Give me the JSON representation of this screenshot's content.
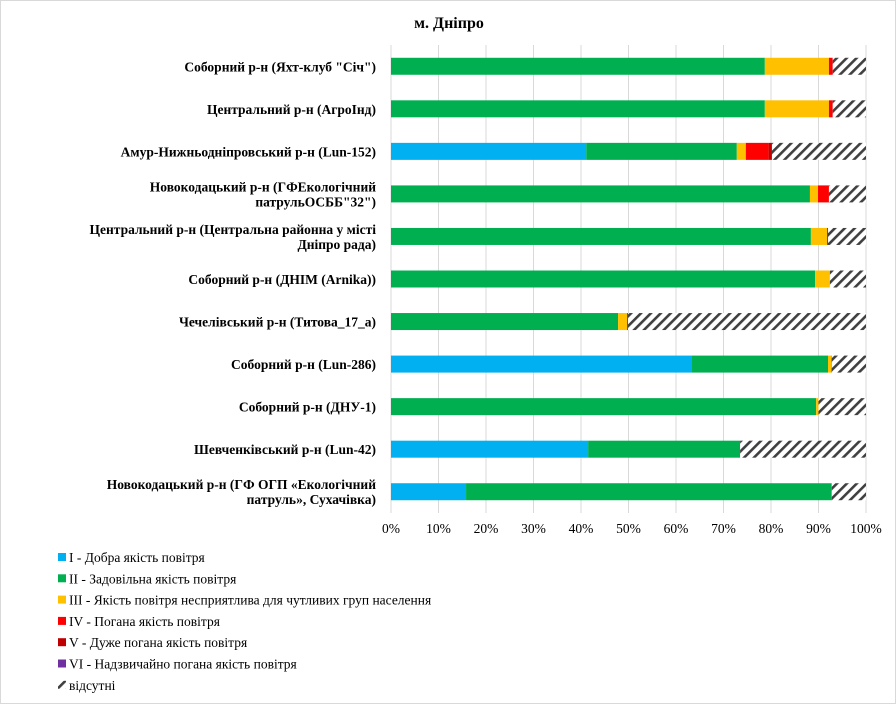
{
  "chart_data": {
    "type": "bar",
    "orientation": "horizontal",
    "stacked": "percent",
    "title": "м. Дніпро",
    "xlabel": "",
    "ylabel": "",
    "xlim": [
      0,
      100
    ],
    "x_ticks": [
      "0%",
      "10%",
      "20%",
      "30%",
      "40%",
      "50%",
      "60%",
      "70%",
      "80%",
      "90%",
      "100%"
    ],
    "grid": "vertical",
    "legend_position": "bottom-left",
    "categories": [
      [
        "Соборний р-н (Яхт-клуб \"Січ\")"
      ],
      [
        "Центральний р-н (АгроІнд)"
      ],
      [
        "Амур-Нижньодніпровський  р-н (Lun-152)"
      ],
      [
        "Новокодацький р-н (ГФЕкологічний",
        "патрульОСББ\"32\")"
      ],
      [
        "Центральний р-н (Центральна районна у місті",
        "Дніпро рада)"
      ],
      [
        "Соборний р-н (ДНІМ (Arnika))"
      ],
      [
        "Чечелівський р-н (Титова_17_а)"
      ],
      [
        "Соборний р-н (Lun-286)"
      ],
      [
        "Соборний р-н (ДНУ-1)"
      ],
      [
        "Шевченківський р-н (Lun-42)"
      ],
      [
        "Новокодацький р-н (ГФ ОГП «Екологічний",
        "патруль», Сухачівка)"
      ]
    ],
    "series": [
      {
        "name": "I - Добра якість  повітря",
        "color": "#00B0F0",
        "values": [
          0,
          0,
          41.1,
          0,
          0,
          0,
          0,
          63.2,
          0,
          41.5,
          15.8
        ]
      },
      {
        "name": "II - Задовільна якість  повітря",
        "color": "#00B050",
        "values": [
          78.7,
          78.7,
          31.7,
          88.2,
          88.4,
          89.3,
          47.8,
          28.8,
          89.5,
          32.0,
          77.0
        ]
      },
      {
        "name": "III - Якість повітря несприятлива для чутливих груп населення",
        "color": "#FFC000",
        "values": [
          13.5,
          13.5,
          1.9,
          1.7,
          3.4,
          3.1,
          1.9,
          0.7,
          0.5,
          0,
          0
        ]
      },
      {
        "name": "IV - Погана якість  повітря",
        "color": "#FF0000",
        "values": [
          0.8,
          0.8,
          4.8,
          2.3,
          0.2,
          0,
          0.2,
          0.1,
          0,
          0,
          0
        ]
      },
      {
        "name": "V - Дуже погана якість  повітря",
        "color": "#C00000",
        "values": [
          0,
          0,
          0.7,
          0,
          0,
          0,
          0,
          0,
          0,
          0,
          0
        ]
      },
      {
        "name": "VI - Надзвичайно погана якість  повітря",
        "color": "#7030A0",
        "values": [
          0,
          0,
          0,
          0,
          0,
          0,
          0,
          0,
          0,
          0,
          0
        ]
      },
      {
        "name": "відсутні",
        "color": "hatch",
        "values": [
          7.0,
          7.0,
          19.8,
          7.8,
          8.0,
          7.6,
          50.1,
          7.2,
          10.0,
          26.5,
          7.2
        ]
      }
    ]
  }
}
